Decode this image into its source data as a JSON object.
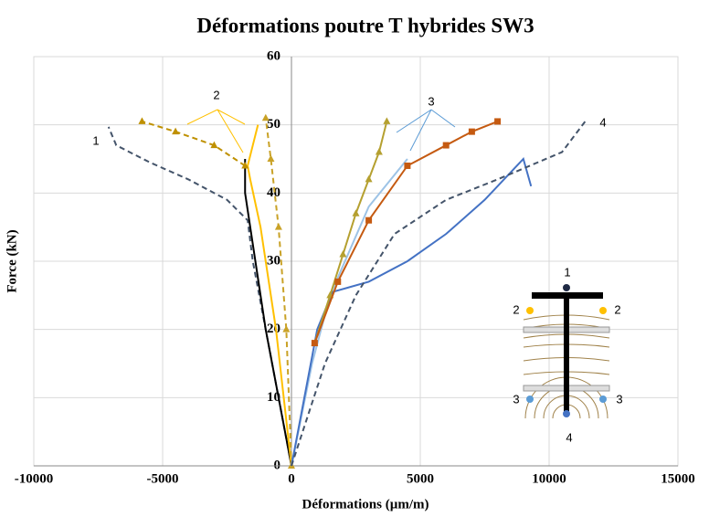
{
  "chart_data": {
    "type": "line",
    "title": "Déformations poutre T hybrides SW3",
    "x_label": "Déformations (µm/m)",
    "y_label": "Force (kN)",
    "xlim": [
      -10000,
      15000
    ],
    "xticks": [
      -10000,
      -5000,
      0,
      5000,
      10000,
      15000
    ],
    "ylim": [
      0,
      60
    ],
    "yticks": [
      0,
      10,
      20,
      30,
      40,
      50,
      60
    ],
    "grid": true,
    "series": [
      {
        "color": "#44546a",
        "dash": true,
        "x": [
          0,
          -1000,
          -1500,
          -1700,
          -2500,
          -4000,
          -5500,
          -6800,
          -7100
        ],
        "values": [
          0,
          20,
          30,
          36,
          39,
          42,
          44.5,
          47,
          49.7
        ]
      },
      {
        "color": "#000000",
        "x": [
          0,
          -1000,
          -1800,
          -1800
        ],
        "values": [
          0,
          20,
          40,
          45
        ]
      },
      {
        "color": "#ffc000",
        "x": [
          0,
          -600,
          -1200,
          -1600,
          -1700,
          -1500,
          -1300
        ],
        "values": [
          0,
          20,
          35,
          42,
          44,
          47,
          50
        ]
      },
      {
        "color": "#bf9000",
        "dash": true,
        "marker": "triangle",
        "x": [
          -1800,
          -3000,
          -4500,
          -5800
        ],
        "values": [
          44,
          47,
          49,
          50.5
        ]
      },
      {
        "color": "#c9a227",
        "dash": true,
        "marker": "triangle",
        "x": [
          0,
          -200,
          -500,
          -800,
          -1000
        ],
        "values": [
          0,
          20,
          35,
          45,
          51
        ]
      },
      {
        "color": "#9dc3e6",
        "x": [
          0,
          800,
          1500,
          3000,
          4500
        ],
        "values": [
          0,
          15,
          25,
          38,
          45
        ]
      },
      {
        "color": "#4472c4",
        "x": [
          0,
          1000,
          1600,
          3000,
          4500,
          6000,
          7500,
          9000,
          9300
        ],
        "values": [
          0,
          20,
          25.5,
          27,
          30,
          34,
          39,
          45,
          41
        ]
      },
      {
        "color": "#44546a",
        "dash": true,
        "x": [
          0,
          1300,
          2500,
          4000,
          6000,
          8000,
          10500,
          11400
        ],
        "values": [
          0,
          15,
          25,
          34,
          39,
          42,
          46,
          50.5
        ]
      },
      {
        "color": "#b5a030",
        "marker": "triangle",
        "x": [
          900,
          1500,
          2000,
          2500,
          3000,
          3400,
          3700
        ],
        "values": [
          18,
          25,
          31,
          37,
          42,
          46,
          50.5
        ]
      },
      {
        "color": "#c55a11",
        "marker": "square",
        "x": [
          900,
          1800,
          3000,
          4500,
          6000,
          7000,
          8000
        ],
        "values": [
          18,
          27,
          36,
          44,
          47,
          49,
          50.5
        ]
      }
    ],
    "annotations": [
      "1",
      "2",
      "3",
      "4"
    ],
    "inset_labels": [
      "1",
      "2",
      "2",
      "3",
      "3",
      "4"
    ]
  }
}
